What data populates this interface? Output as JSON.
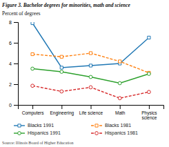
{
  "chart_data": {
    "type": "line",
    "title": "Figure 3. Bachelor degrees for minorities, math and science",
    "ylabel": "Percent of degrees",
    "source": "Source: Illinois Board of Higher Education",
    "categories": [
      "Computers",
      "Engineering",
      "Life science",
      "Math",
      "Physics\nscience"
    ],
    "series": [
      {
        "name": "Blacks 1991",
        "values": [
          7.9,
          3.6,
          3.8,
          4.0,
          6.5
        ],
        "marker": "square",
        "line_style": "solid"
      },
      {
        "name": "Blacks 1981",
        "values": [
          4.9,
          4.65,
          5.0,
          4.2,
          3.1
        ],
        "marker": "square",
        "line_style": "dashed"
      },
      {
        "name": "Hispanics 1991",
        "values": [
          3.5,
          3.2,
          2.7,
          2.1,
          3.0
        ],
        "marker": "circle",
        "line_style": "solid"
      },
      {
        "name": "Hispanics 1981",
        "values": [
          1.85,
          1.3,
          1.7,
          0.65,
          1.25
        ],
        "marker": "circle",
        "line_style": "dashed"
      }
    ],
    "ylim": [
      0,
      8
    ],
    "yticks": [
      0,
      2,
      4,
      6,
      8
    ],
    "grid": false,
    "legend": "bottom"
  }
}
